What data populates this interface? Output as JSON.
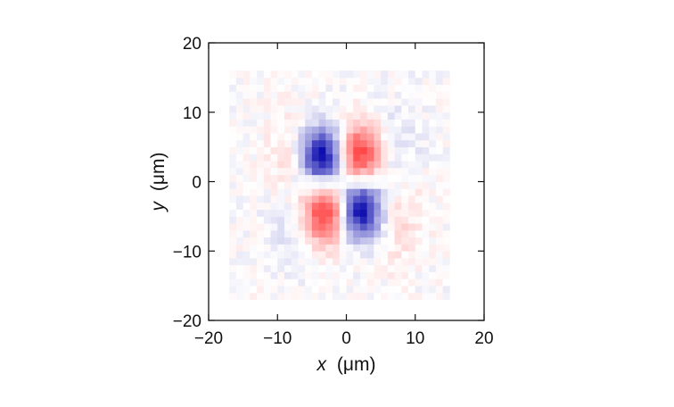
{
  "chart_data": {
    "type": "heatmap",
    "title": "",
    "xlabel": {
      "var": "x",
      "unit": "(μm)"
    },
    "ylabel": {
      "var": "y",
      "unit": "(μm)"
    },
    "xlim": [
      -20,
      20
    ],
    "ylim": [
      -20,
      20
    ],
    "xticks": [
      -20,
      -10,
      0,
      10,
      20
    ],
    "yticks": [
      -20,
      -10,
      0,
      10,
      20
    ],
    "grid": false,
    "legend": "none",
    "colormap": {
      "negative": "#0000aa",
      "zero": "#ffffff",
      "positive": "#ff1a1a"
    },
    "map_extent": {
      "x": [
        -17,
        15
      ],
      "y": [
        -17,
        16
      ]
    },
    "lobes": [
      {
        "x": -3.5,
        "y": 3.5,
        "sign": -1,
        "peak": 1.0
      },
      {
        "x": 2.0,
        "y": 4.0,
        "sign": 1,
        "peak": 0.85
      },
      {
        "x": -3.0,
        "y": -4.5,
        "sign": 1,
        "peak": 0.9
      },
      {
        "x": 2.0,
        "y": -4.0,
        "sign": -1,
        "peak": 1.0
      },
      {
        "x": -8.0,
        "y": 2.0,
        "sign": 1,
        "peak": 0.18
      },
      {
        "x": 7.0,
        "y": 3.0,
        "sign": -1,
        "peak": 0.18
      },
      {
        "x": -8.0,
        "y": -5.0,
        "sign": -1,
        "peak": 0.15
      },
      {
        "x": 7.5,
        "y": -4.0,
        "sign": 1,
        "peak": 0.2
      }
    ]
  }
}
